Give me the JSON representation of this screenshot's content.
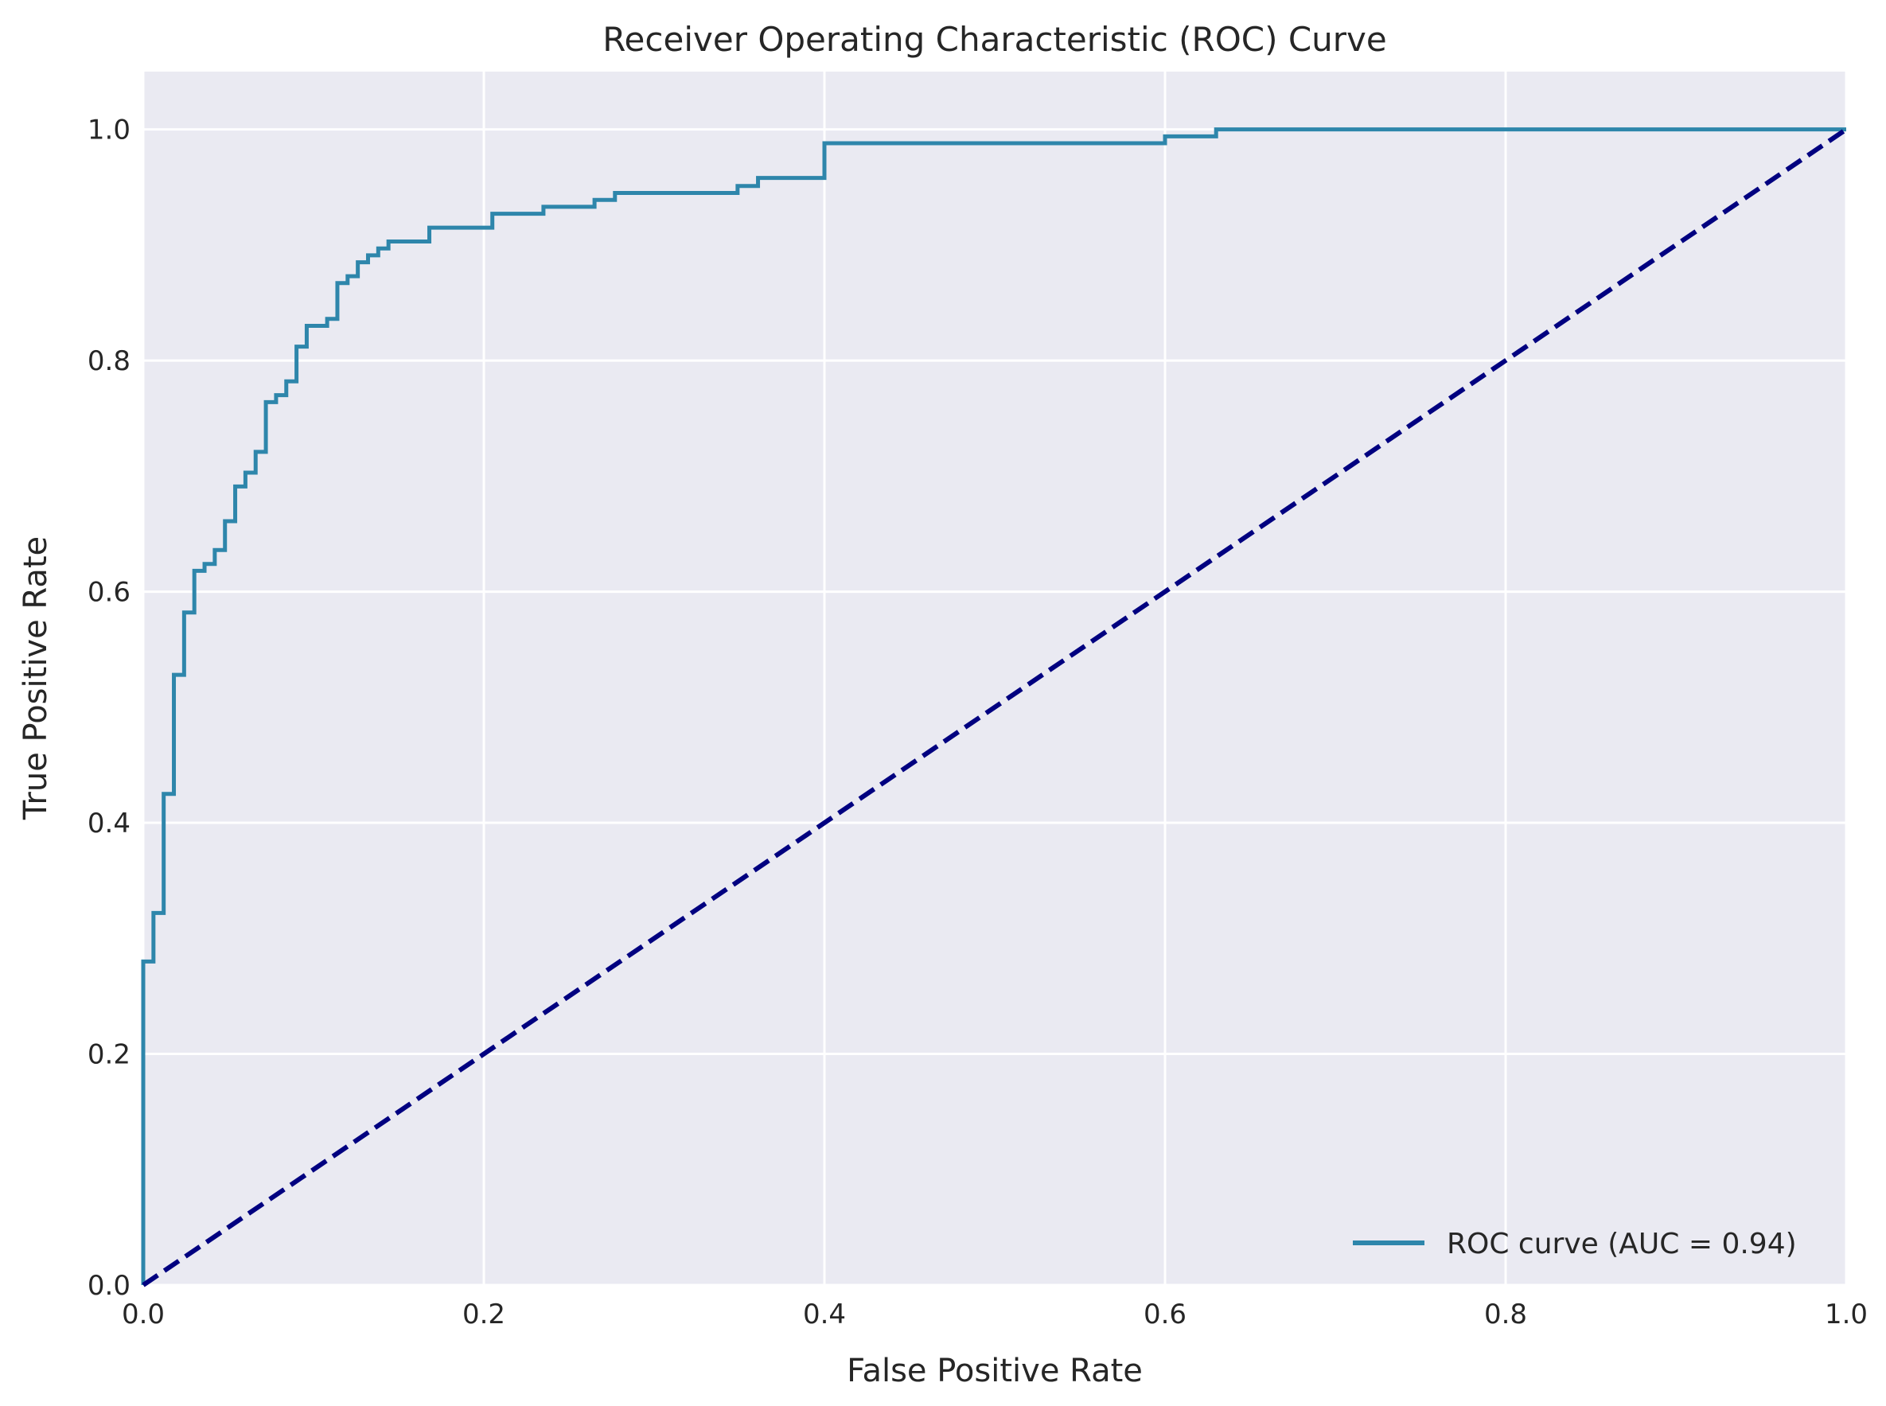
{
  "chart_data": {
    "type": "line",
    "title": "Receiver Operating Characteristic (ROC) Curve",
    "xlabel": "False Positive Rate",
    "ylabel": "True Positive Rate",
    "xlim": [
      0.0,
      1.0
    ],
    "ylim": [
      0.0,
      1.05
    ],
    "x_ticks": [
      "0.0",
      "0.2",
      "0.4",
      "0.6",
      "0.8",
      "1.0"
    ],
    "y_ticks": [
      "0.0",
      "0.2",
      "0.4",
      "0.6",
      "0.8",
      "1.0"
    ],
    "grid": true,
    "legend_position": "bottom-right",
    "background": "#eaeaf2",
    "series": [
      {
        "name": "ROC curve (AUC = 0.94)",
        "color": "#2e86ab",
        "style": "step",
        "points": [
          [
            0.0,
            0.0
          ],
          [
            0.0,
            0.28
          ],
          [
            0.006,
            0.28
          ],
          [
            0.006,
            0.322
          ],
          [
            0.012,
            0.322
          ],
          [
            0.012,
            0.425
          ],
          [
            0.018,
            0.425
          ],
          [
            0.018,
            0.528
          ],
          [
            0.024,
            0.528
          ],
          [
            0.024,
            0.582
          ],
          [
            0.03,
            0.582
          ],
          [
            0.03,
            0.618
          ],
          [
            0.036,
            0.618
          ],
          [
            0.036,
            0.624
          ],
          [
            0.042,
            0.624
          ],
          [
            0.042,
            0.636
          ],
          [
            0.048,
            0.636
          ],
          [
            0.048,
            0.661
          ],
          [
            0.054,
            0.661
          ],
          [
            0.054,
            0.691
          ],
          [
            0.06,
            0.691
          ],
          [
            0.06,
            0.703
          ],
          [
            0.066,
            0.703
          ],
          [
            0.066,
            0.721
          ],
          [
            0.072,
            0.721
          ],
          [
            0.072,
            0.764
          ],
          [
            0.078,
            0.764
          ],
          [
            0.078,
            0.77
          ],
          [
            0.084,
            0.77
          ],
          [
            0.084,
            0.782
          ],
          [
            0.09,
            0.782
          ],
          [
            0.09,
            0.812
          ],
          [
            0.096,
            0.812
          ],
          [
            0.096,
            0.83
          ],
          [
            0.108,
            0.83
          ],
          [
            0.108,
            0.836
          ],
          [
            0.114,
            0.836
          ],
          [
            0.114,
            0.867
          ],
          [
            0.12,
            0.867
          ],
          [
            0.12,
            0.873
          ],
          [
            0.126,
            0.873
          ],
          [
            0.126,
            0.885
          ],
          [
            0.132,
            0.885
          ],
          [
            0.132,
            0.891
          ],
          [
            0.138,
            0.891
          ],
          [
            0.138,
            0.897
          ],
          [
            0.144,
            0.897
          ],
          [
            0.144,
            0.903
          ],
          [
            0.168,
            0.903
          ],
          [
            0.168,
            0.915
          ],
          [
            0.205,
            0.915
          ],
          [
            0.205,
            0.927
          ],
          [
            0.235,
            0.927
          ],
          [
            0.235,
            0.933
          ],
          [
            0.265,
            0.933
          ],
          [
            0.265,
            0.939
          ],
          [
            0.277,
            0.939
          ],
          [
            0.277,
            0.945
          ],
          [
            0.349,
            0.945
          ],
          [
            0.349,
            0.951
          ],
          [
            0.361,
            0.951
          ],
          [
            0.361,
            0.958
          ],
          [
            0.4,
            0.958
          ],
          [
            0.4,
            0.988
          ],
          [
            0.6,
            0.988
          ],
          [
            0.6,
            0.994
          ],
          [
            0.63,
            0.994
          ],
          [
            0.63,
            1.0
          ],
          [
            1.0,
            1.0
          ]
        ]
      },
      {
        "name": "",
        "color": "#000080",
        "style": "dashed",
        "points": [
          [
            0.0,
            0.0
          ],
          [
            1.0,
            1.0
          ]
        ]
      }
    ]
  }
}
